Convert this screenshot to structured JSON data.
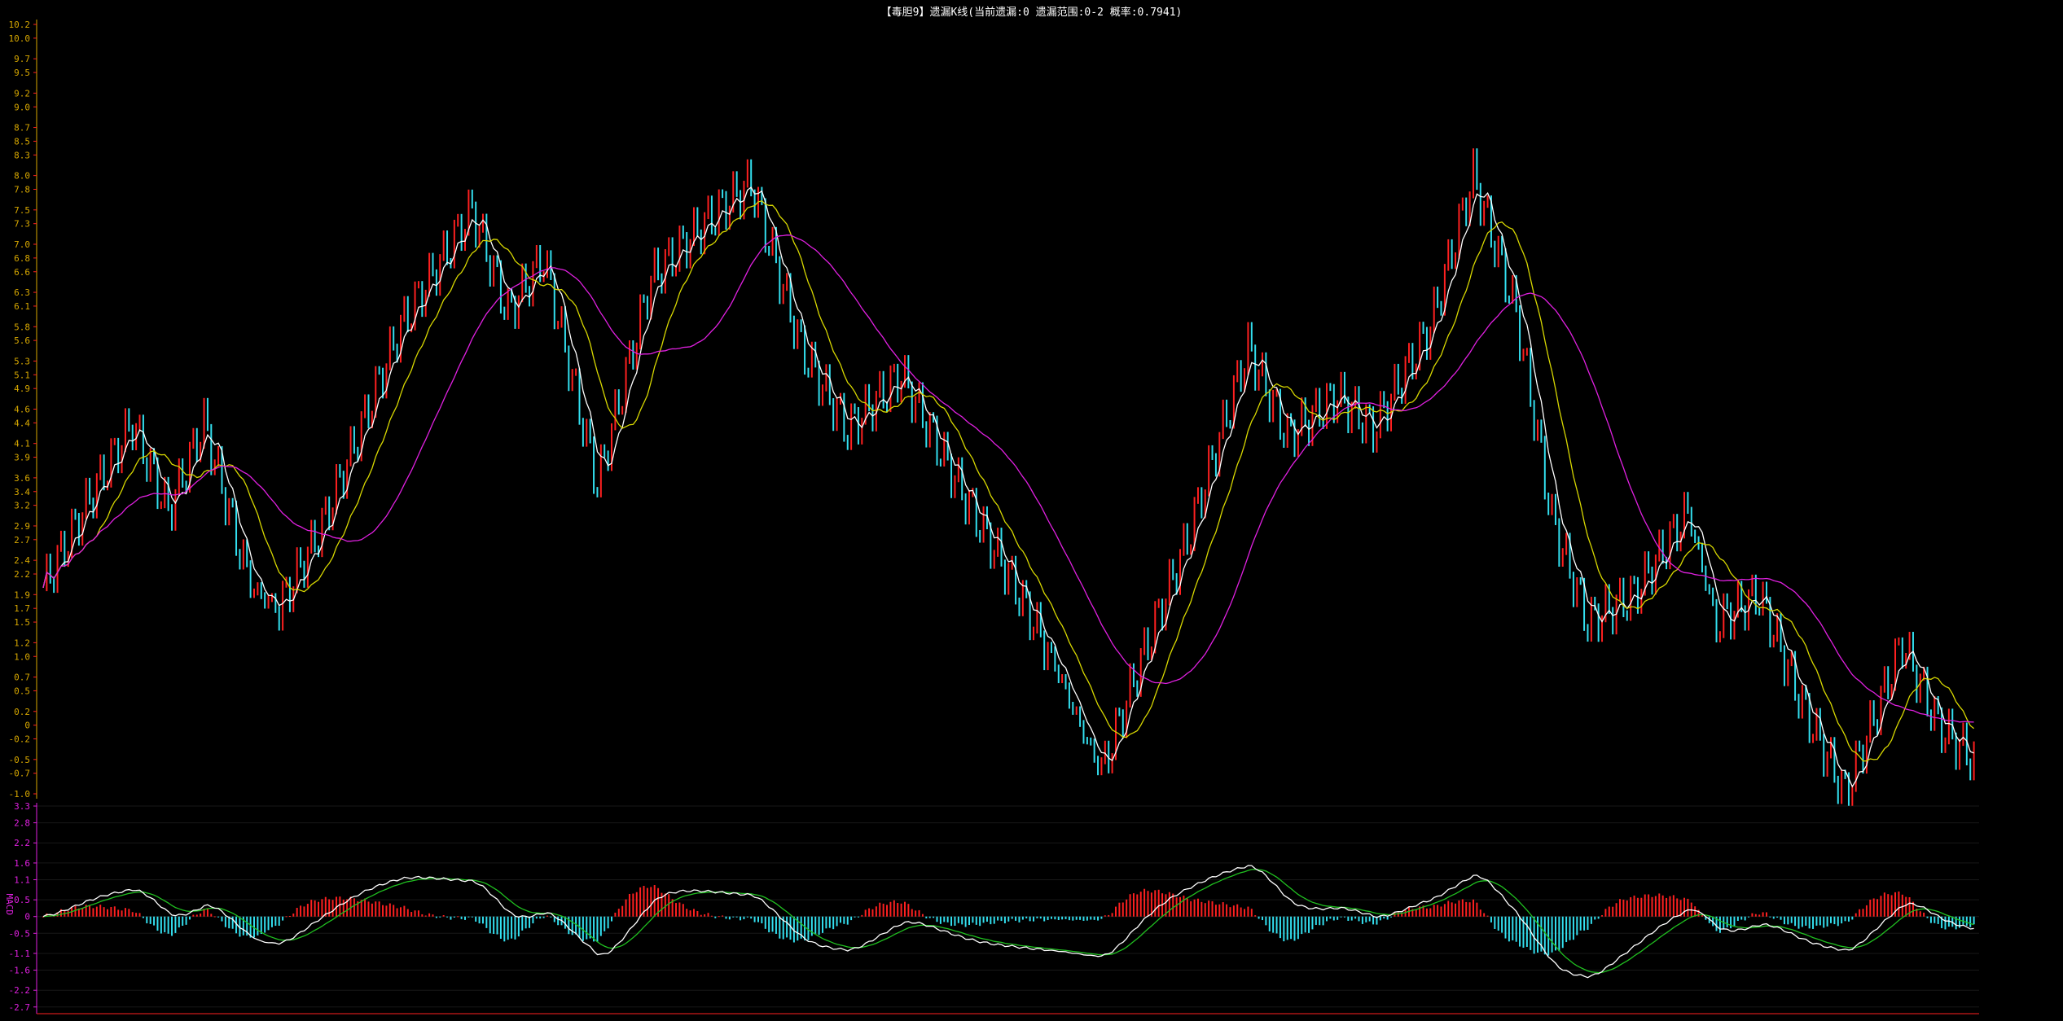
{
  "title": "【毒胆9】遗漏K线(当前遗漏:0 遗漏范围:0-2 概率:0.7941)",
  "colors": {
    "background": "#000000",
    "up": "#ff2020",
    "down": "#33e0f0",
    "ma_white": "#ffffff",
    "ma_yellow": "#d8d800",
    "ma_magenta": "#e020e0",
    "macd_dif": "#ffffff",
    "macd_dea": "#20c020",
    "price_axis": "#d8a800",
    "macd_axis": "#e020e0"
  },
  "chart_data": [
    {
      "type": "line",
      "subtype": "k-line (step/candle bars) with moving averages",
      "ylim": [
        -1.0,
        10.2
      ],
      "yticks": [
        "10.2",
        "10.0",
        "9.7",
        "9.5",
        "9.2",
        "9.0",
        "8.7",
        "8.5",
        "8.3",
        "8.0",
        "7.8",
        "7.5",
        "7.3",
        "7.0",
        "6.8",
        "6.6",
        "6.3",
        "6.1",
        "5.8",
        "5.6",
        "5.3",
        "5.1",
        "4.9",
        "4.6",
        "4.4",
        "4.1",
        "3.9",
        "3.6",
        "3.4",
        "3.2",
        "2.9",
        "2.7",
        "2.4",
        "2.2",
        "1.9",
        "1.7",
        "1.5",
        "1.2",
        "1.0",
        "0.7",
        "0.5",
        "0.2",
        "0",
        "-0.2",
        "-0.5",
        "-0.7",
        "-1.0"
      ],
      "series_description": "value of the miss-count K line over ~540 periods",
      "waypoints": [
        [
          0,
          2.0
        ],
        [
          14,
          3.4
        ],
        [
          25,
          4.4
        ],
        [
          35,
          3.1
        ],
        [
          45,
          4.4
        ],
        [
          58,
          2.0
        ],
        [
          66,
          1.7
        ],
        [
          78,
          2.9
        ],
        [
          100,
          5.8
        ],
        [
          120,
          7.5
        ],
        [
          130,
          6.0
        ],
        [
          140,
          6.8
        ],
        [
          155,
          3.5
        ],
        [
          170,
          6.5
        ],
        [
          185,
          7.3
        ],
        [
          198,
          7.9
        ],
        [
          212,
          5.5
        ],
        [
          225,
          4.3
        ],
        [
          240,
          5.1
        ],
        [
          258,
          3.3
        ],
        [
          270,
          2.2
        ],
        [
          282,
          1.0
        ],
        [
          290,
          0.0
        ],
        [
          296,
          -0.7
        ],
        [
          306,
          0.8
        ],
        [
          320,
          2.7
        ],
        [
          337,
          5.5
        ],
        [
          348,
          4.2
        ],
        [
          362,
          4.8
        ],
        [
          372,
          4.3
        ],
        [
          388,
          5.8
        ],
        [
          400,
          8.0
        ],
        [
          412,
          6.0
        ],
        [
          422,
          3.0
        ],
        [
          432,
          1.5
        ],
        [
          445,
          1.9
        ],
        [
          460,
          3.1
        ],
        [
          468,
          1.5
        ],
        [
          480,
          1.9
        ],
        [
          492,
          0.3
        ],
        [
          504,
          -1.0
        ],
        [
          520,
          1.2
        ],
        [
          530,
          0.0
        ],
        [
          540,
          -0.5
        ]
      ],
      "moving_averages": [
        {
          "color_key": "ma_white"
        },
        {
          "color_key": "ma_yellow"
        },
        {
          "color_key": "ma_magenta"
        }
      ]
    },
    {
      "type": "bar",
      "subtype": "MACD histogram with DIF/DEA lines",
      "ylim": [
        -2.9,
        3.3
      ],
      "yticks": [
        "3.3",
        "2.8",
        "2.2",
        "1.6",
        "1.1",
        "0.5",
        "0",
        "-0.5",
        "-1.1",
        "-1.6",
        "-2.2",
        "-2.7"
      ],
      "ylabel": "MACD"
    }
  ]
}
